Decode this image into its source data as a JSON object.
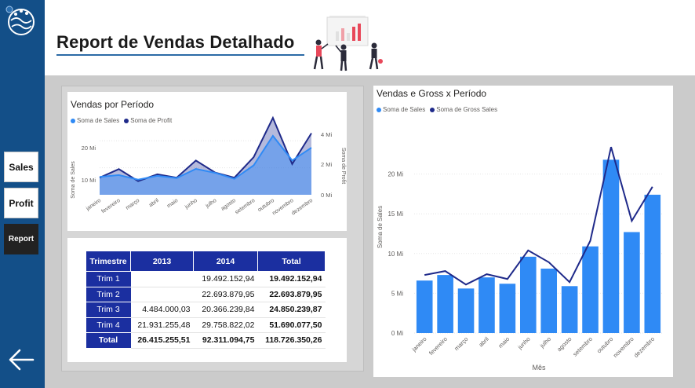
{
  "header": {
    "title": "Report de Vendas Detalhado"
  },
  "nav": {
    "sales_label": "Sales",
    "profit_label": "Profit",
    "report_label": "Report"
  },
  "colors": {
    "sidebar": "#134f88",
    "sales": "#2f8af5",
    "profit": "#1f2a8a",
    "table_header": "#1b2fa0"
  },
  "area_card": {
    "title": "Vendas por Período",
    "legend": [
      "Soma de  Sales",
      "Soma de Profit"
    ],
    "y_left_label": "Soma de Sales",
    "y_right_label": "Soma de Profit",
    "y_left_ticks": [
      "20 Mi",
      "10 Mi"
    ],
    "y_right_ticks": [
      "4 Mi",
      "2 Mi",
      "0 Mi"
    ]
  },
  "combo_card": {
    "title": "Vendas e Gross x Período",
    "legend": [
      "Soma de  Sales",
      "Soma de Gross Sales"
    ],
    "y_label": "Soma de Sales",
    "x_label": "Mês",
    "y_ticks": [
      "20 Mi",
      "15 Mi",
      "10 Mi",
      "5 Mi",
      "0 Mi"
    ]
  },
  "table": {
    "headers": [
      "Trimestre",
      "2013",
      "2014",
      "Total"
    ],
    "rows": [
      {
        "label": "Trim 1",
        "y2013": "",
        "y2014": "19.492.152,94",
        "total": "19.492.152,94"
      },
      {
        "label": "Trim 2",
        "y2013": "",
        "y2014": "22.693.879,95",
        "total": "22.693.879,95"
      },
      {
        "label": "Trim 3",
        "y2013": "4.484.000,03",
        "y2014": "20.366.239,84",
        "total": "24.850.239,87"
      },
      {
        "label": "Trim 4",
        "y2013": "21.931.255,48",
        "y2014": "29.758.822,02",
        "total": "51.690.077,50"
      }
    ],
    "total_row": {
      "label": "Total",
      "y2013": "26.415.255,51",
      "y2014": "92.311.094,75",
      "total": "118.726.350,26"
    }
  },
  "chart_data": [
    {
      "type": "area",
      "title": "Vendas por Período",
      "categories": [
        "janeiro",
        "fevereiro",
        "março",
        "abril",
        "maio",
        "junho",
        "julho",
        "agosto",
        "setembro",
        "outubro",
        "novembro",
        "dezembro"
      ],
      "series": [
        {
          "name": "Soma de  Sales",
          "axis": "left",
          "values": [
            6.6,
            7.3,
            5.6,
            7.0,
            6.2,
            9.6,
            8.1,
            5.9,
            10.9,
            21.8,
            12.7,
            17.4
          ]
        },
        {
          "name": "Soma de Profit",
          "axis": "right",
          "values": [
            1.0,
            1.5,
            0.8,
            1.2,
            1.0,
            2.0,
            1.3,
            1.0,
            2.2,
            4.5,
            1.8,
            3.6
          ]
        }
      ],
      "ylim_left": [
        0,
        25
      ],
      "ylim_right": [
        0,
        4.5
      ]
    },
    {
      "type": "bar",
      "title": "Vendas e Gross x Período",
      "categories": [
        "janeiro",
        "fevereiro",
        "março",
        "abril",
        "maio",
        "junho",
        "julho",
        "agosto",
        "setembro",
        "outubro",
        "novembro",
        "dezembro"
      ],
      "series": [
        {
          "name": "Soma de  Sales",
          "type": "bar",
          "values": [
            6.6,
            7.3,
            5.6,
            7.0,
            6.2,
            9.6,
            8.1,
            5.9,
            10.9,
            21.8,
            12.7,
            17.4
          ]
        },
        {
          "name": "Soma de Gross Sales",
          "type": "line",
          "values": [
            7.3,
            7.8,
            6.1,
            7.4,
            6.8,
            10.4,
            8.9,
            6.4,
            11.6,
            23.4,
            14.1,
            18.4
          ]
        }
      ],
      "xlabel": "Mês",
      "ylabel": "Soma de Sales",
      "ylim": [
        0,
        25
      ]
    }
  ]
}
